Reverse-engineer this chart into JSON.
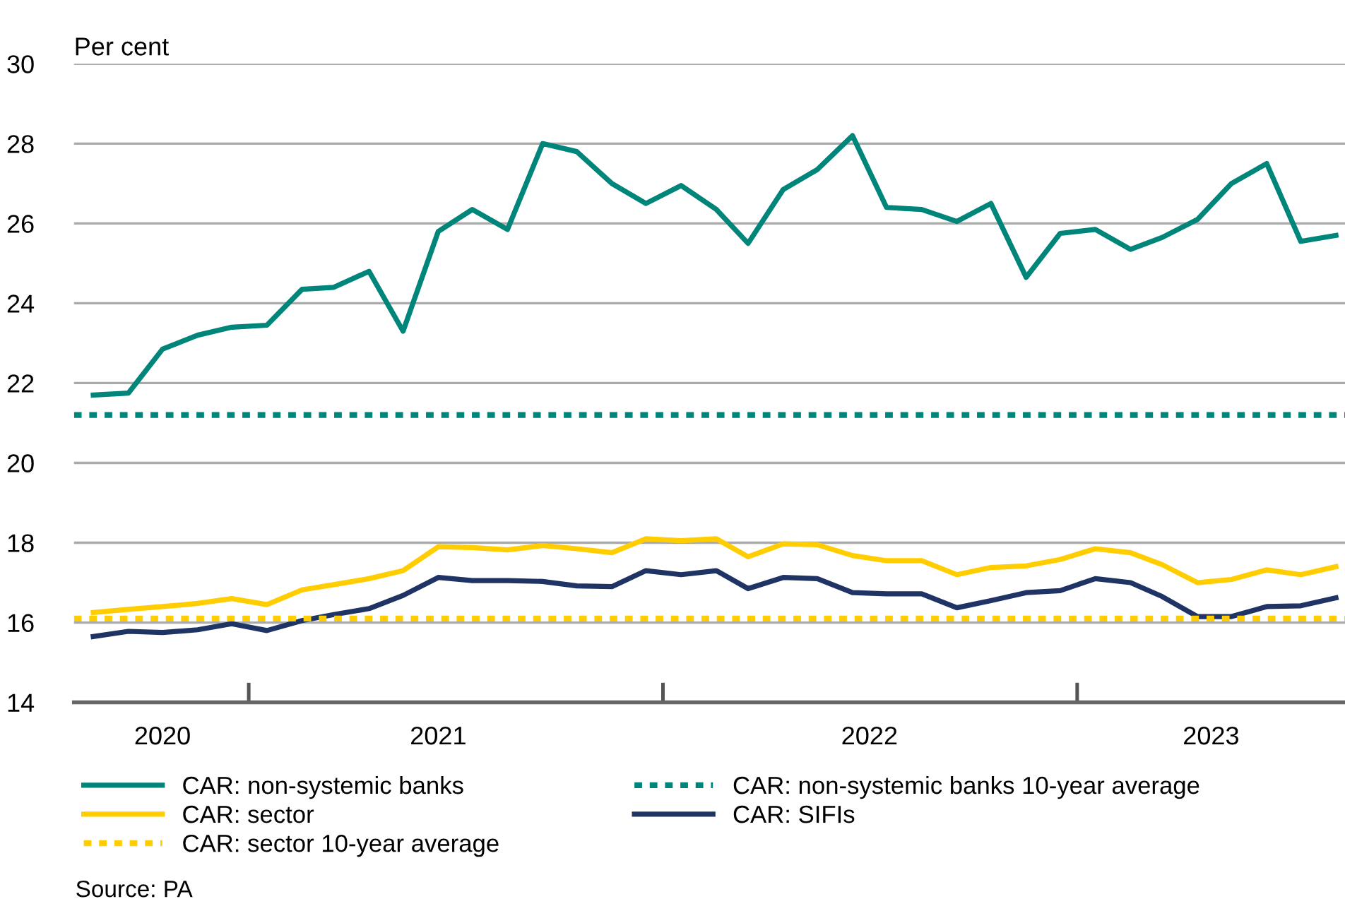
{
  "chart_data": {
    "type": "line",
    "ylabel": "Per cent",
    "x": [
      "2020-08",
      "2020-09",
      "2020-10",
      "2020-11",
      "2020-12",
      "2021-01",
      "2021-02",
      "2021-03",
      "2021-04",
      "2021-05",
      "2021-06",
      "2021-07",
      "2021-08",
      "2021-09",
      "2021-10",
      "2021-11",
      "2021-12",
      "2022-01",
      "2022-02",
      "2022-03",
      "2022-04",
      "2022-05",
      "2022-06",
      "2022-07",
      "2022-08",
      "2022-09",
      "2022-10",
      "2022-11",
      "2022-12",
      "2023-01",
      "2023-02",
      "2023-03",
      "2023-04",
      "2023-05",
      "2023-06",
      "2023-07",
      "2023-08"
    ],
    "series": [
      {
        "name": "CAR: non-systemic banks",
        "color": "#00857a",
        "values": [
          21.7,
          21.75,
          22.85,
          23.2,
          23.4,
          23.45,
          24.35,
          24.4,
          24.8,
          23.3,
          25.8,
          26.35,
          25.85,
          28.0,
          27.8,
          27.0,
          26.5,
          26.95,
          26.35,
          25.5,
          26.85,
          27.35,
          28.2,
          26.4,
          26.35,
          26.05,
          26.5,
          24.65,
          25.75,
          25.85,
          25.35,
          25.65,
          26.1,
          27.0,
          27.5,
          25.55,
          25.7
        ]
      },
      {
        "name": "CAR: sector",
        "color": "#ffcd00",
        "values": [
          16.25,
          16.33,
          16.4,
          16.48,
          16.6,
          16.45,
          16.82,
          16.95,
          17.1,
          17.3,
          17.9,
          17.88,
          17.82,
          17.93,
          17.85,
          17.75,
          18.1,
          18.05,
          18.1,
          17.65,
          17.97,
          17.95,
          17.68,
          17.55,
          17.55,
          17.2,
          17.38,
          17.42,
          17.58,
          17.85,
          17.75,
          17.45,
          17.0,
          17.08,
          17.32,
          17.2,
          17.4
        ]
      },
      {
        "name": "CAR: SIFIs",
        "color": "#1f3464",
        "values": [
          15.65,
          15.78,
          15.75,
          15.82,
          15.97,
          15.8,
          16.05,
          16.2,
          16.35,
          16.68,
          17.13,
          17.05,
          17.05,
          17.03,
          16.92,
          16.9,
          17.3,
          17.2,
          17.3,
          16.85,
          17.13,
          17.1,
          16.75,
          16.72,
          16.72,
          16.37,
          16.55,
          16.75,
          16.8,
          17.1,
          17.0,
          16.65,
          16.15,
          16.15,
          16.4,
          16.42,
          16.62
        ]
      }
    ],
    "ref_lines": [
      {
        "axis": "y",
        "value": 16.1,
        "label": "CAR: sector 10-year average",
        "color": "#ffcd00",
        "line_style": "dotted"
      },
      {
        "axis": "y",
        "value": 21.2,
        "label": "CAR: non-systemic banks 10-year average",
        "color": "#00857a",
        "line_style": "dotted"
      }
    ],
    "xlim": [
      "2020-07-15",
      "2023-08-09"
    ],
    "xticks": [
      {
        "value": "2020-12-16",
        "label": null
      },
      {
        "value": "2021-12-16",
        "label": null
      },
      {
        "value": "2022-12-16",
        "label": null
      },
      {
        "value": "2020-10-01",
        "label": "2020"
      },
      {
        "value": "2021-06-01",
        "label": "2021"
      },
      {
        "value": "2022-06-16",
        "label": "2022"
      },
      {
        "value": "2023-04-13",
        "label": "2023"
      }
    ],
    "ylim": [
      14,
      30
    ],
    "yticks": [
      14,
      16,
      18,
      20,
      22,
      24,
      26,
      28,
      30
    ],
    "grid": "y",
    "legend": "bottom",
    "line_style": "solid",
    "annotations": [
      "Source: PA"
    ]
  }
}
